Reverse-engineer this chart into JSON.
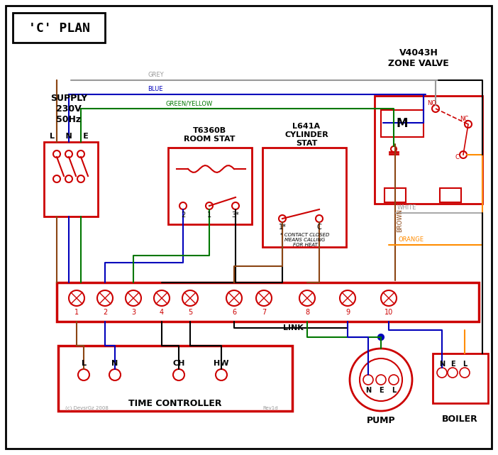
{
  "title": "'C' PLAN",
  "bg": "#ffffff",
  "RED": "#cc0000",
  "BLUE": "#0000bb",
  "GREEN": "#007700",
  "GREY": "#999999",
  "BROWN": "#8B4513",
  "BLACK": "#000000",
  "ORANGE": "#FF8C00",
  "WHITE": "#aaaaaa",
  "labels": {
    "supply": "SUPPLY\n230V\n50Hz",
    "lne": "L    N    E",
    "room_stat_title": "T6360B\nROOM STAT",
    "cyl_stat_title": "L641A\nCYLINDER\nSTAT",
    "zone_valve_title": "V4043H\nZONE VALVE",
    "time_ctrl": "TIME CONTROLLER",
    "pump": "PUMP",
    "boiler": "BOILER",
    "link": "LINK",
    "contact_note": "* CONTACT CLOSED\nMEANS CALLING\nFOR HEAT",
    "copyright": "(c) DevsrGz 2008",
    "rev": "Rev1d",
    "grey_lbl": "GREY",
    "blue_lbl": "BLUE",
    "gy_lbl": "GREEN/YELLOW",
    "brown_lbl": "BROWN",
    "white_lbl": "WHITE",
    "orange_lbl": "ORANGE",
    "motor": "M",
    "no_lbl": "NO",
    "nc_lbl": "NC",
    "c_lbl": "C"
  },
  "terminals": [
    "1",
    "2",
    "3",
    "4",
    "5",
    "6",
    "7",
    "8",
    "9",
    "10"
  ],
  "tc_labels": [
    "L",
    "N",
    "CH",
    "HW"
  ],
  "nel_labels": [
    "N",
    "E",
    "L"
  ],
  "rs_labels": [
    "2",
    "1",
    "3*"
  ],
  "cs_labels": [
    "1*",
    "C"
  ]
}
